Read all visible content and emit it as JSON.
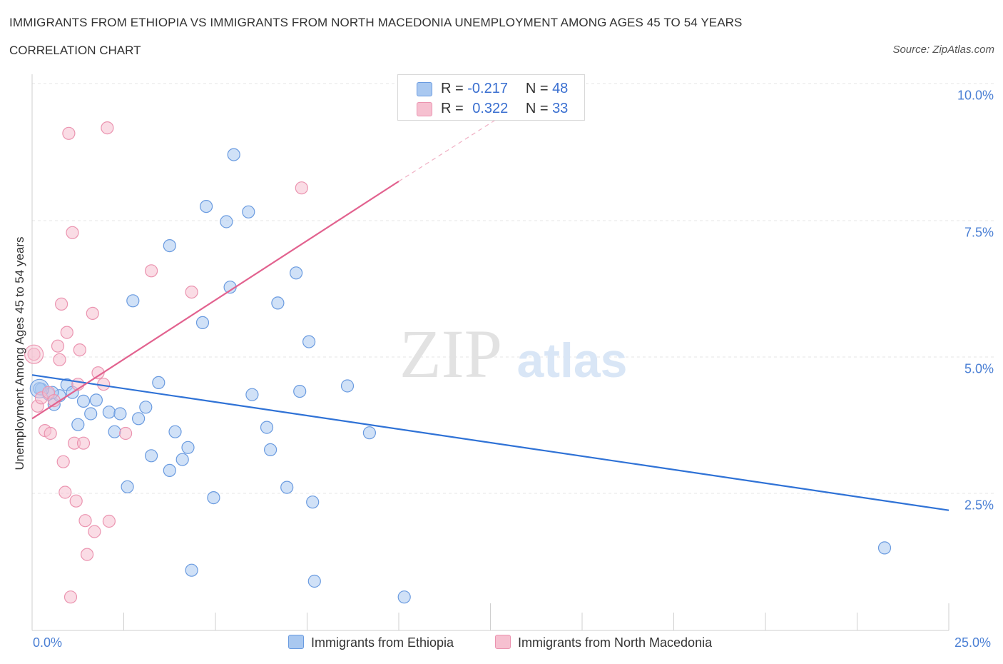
{
  "title": "IMMIGRANTS FROM ETHIOPIA VS IMMIGRANTS FROM NORTH MACEDONIA UNEMPLOYMENT AMONG AGES 45 TO 54 YEARS",
  "subtitle": "CORRELATION CHART",
  "source": "Source: ZipAtlas.com",
  "watermark": {
    "zip": "ZIP",
    "atlas": "atlas"
  },
  "legend": {
    "r_label": "R =",
    "n_label": "N =",
    "series": [
      {
        "r": "-0.217",
        "n": "48"
      },
      {
        "r": "0.322",
        "n": "33"
      }
    ]
  },
  "colors": {
    "ethiopia_fill": "#a9c8f0",
    "ethiopia_stroke": "#6a9be0",
    "ethiopia_line": "#2f72d6",
    "macedonia_fill": "#f6c0d0",
    "macedonia_stroke": "#eb94b0",
    "macedonia_line": "#e2628f",
    "tick_text": "#4a7fd4"
  },
  "chart_data": {
    "type": "scatter",
    "title": "IMMIGRANTS FROM ETHIOPIA VS IMMIGRANTS FROM NORTH MACEDONIA UNEMPLOYMENT AMONG AGES 45 TO 54 YEARS",
    "xlabel": "",
    "ylabel": "Unemployment Among Ages 45 to 54 years",
    "xlim": [
      0,
      25
    ],
    "ylim": [
      0,
      10
    ],
    "x_tick_labels": [
      "0.0%",
      "25.0%"
    ],
    "y_ticks": [
      2.5,
      5.0,
      7.5,
      10.0
    ],
    "y_tick_labels": [
      "2.5%",
      "5.0%",
      "7.5%",
      "10.0%"
    ],
    "grid": true,
    "series": [
      {
        "name": "Immigrants from Ethiopia",
        "r": -0.217,
        "n": 48,
        "trend": {
          "x0": 0,
          "y0": 4.67,
          "x1": 25,
          "y1": 2.19
        },
        "points": [
          [
            0.25,
            4.41
          ],
          [
            0.45,
            4.32
          ],
          [
            0.6,
            4.13
          ],
          [
            0.75,
            4.29
          ],
          [
            0.95,
            4.49
          ],
          [
            1.1,
            4.35
          ],
          [
            1.25,
            3.76
          ],
          [
            1.4,
            4.19
          ],
          [
            1.6,
            3.96
          ],
          [
            1.75,
            4.21
          ],
          [
            2.1,
            3.99
          ],
          [
            2.25,
            3.63
          ],
          [
            2.4,
            3.96
          ],
          [
            2.6,
            2.62
          ],
          [
            2.75,
            6.03
          ],
          [
            2.9,
            3.87
          ],
          [
            3.1,
            4.08
          ],
          [
            3.25,
            3.19
          ],
          [
            3.45,
            4.53
          ],
          [
            3.75,
            7.04
          ],
          [
            3.75,
            2.92
          ],
          [
            3.9,
            3.63
          ],
          [
            4.1,
            3.12
          ],
          [
            4.25,
            3.34
          ],
          [
            4.35,
            1.09
          ],
          [
            4.65,
            5.63
          ],
          [
            4.75,
            7.76
          ],
          [
            4.95,
            2.42
          ],
          [
            5.3,
            7.48
          ],
          [
            5.4,
            6.28
          ],
          [
            5.5,
            8.71
          ],
          [
            5.9,
            7.66
          ],
          [
            6.0,
            4.31
          ],
          [
            6.4,
            3.71
          ],
          [
            6.5,
            3.3
          ],
          [
            6.7,
            5.99
          ],
          [
            6.95,
            2.61
          ],
          [
            7.2,
            6.54
          ],
          [
            7.3,
            4.37
          ],
          [
            7.55,
            5.28
          ],
          [
            7.65,
            2.34
          ],
          [
            7.7,
            0.89
          ],
          [
            8.6,
            4.47
          ],
          [
            9.2,
            3.61
          ],
          [
            10.15,
            0.6
          ],
          [
            23.25,
            1.5
          ],
          [
            0.2,
            4.42
          ],
          [
            0.55,
            4.35
          ]
        ]
      },
      {
        "name": "Immigrants from North Macedonia",
        "r": 0.322,
        "n": 33,
        "trend": {
          "x0": 0,
          "y0": 3.87,
          "x1": 10,
          "y1": 8.22
        },
        "trend_extension": {
          "x0": 10,
          "y0": 8.22,
          "x1": 13,
          "y1": 9.5
        },
        "points": [
          [
            0.05,
            5.05
          ],
          [
            0.15,
            4.1
          ],
          [
            0.25,
            4.25
          ],
          [
            0.35,
            3.65
          ],
          [
            0.45,
            4.35
          ],
          [
            0.5,
            3.6
          ],
          [
            0.7,
            5.2
          ],
          [
            0.75,
            4.95
          ],
          [
            0.8,
            5.97
          ],
          [
            0.85,
            3.08
          ],
          [
            0.9,
            2.52
          ],
          [
            0.95,
            5.45
          ],
          [
            1.0,
            9.1
          ],
          [
            1.1,
            7.28
          ],
          [
            1.05,
            0.6
          ],
          [
            1.15,
            3.42
          ],
          [
            1.25,
            4.5
          ],
          [
            1.2,
            2.36
          ],
          [
            1.3,
            5.13
          ],
          [
            1.4,
            3.42
          ],
          [
            1.45,
            2.0
          ],
          [
            1.5,
            1.38
          ],
          [
            1.65,
            5.8
          ],
          [
            1.7,
            1.8
          ],
          [
            1.8,
            4.71
          ],
          [
            1.95,
            4.5
          ],
          [
            2.05,
            9.2
          ],
          [
            2.1,
            1.99
          ],
          [
            2.55,
            3.6
          ],
          [
            3.25,
            6.58
          ],
          [
            4.35,
            6.19
          ],
          [
            7.35,
            8.1
          ],
          [
            0.6,
            4.2
          ]
        ]
      }
    ]
  }
}
